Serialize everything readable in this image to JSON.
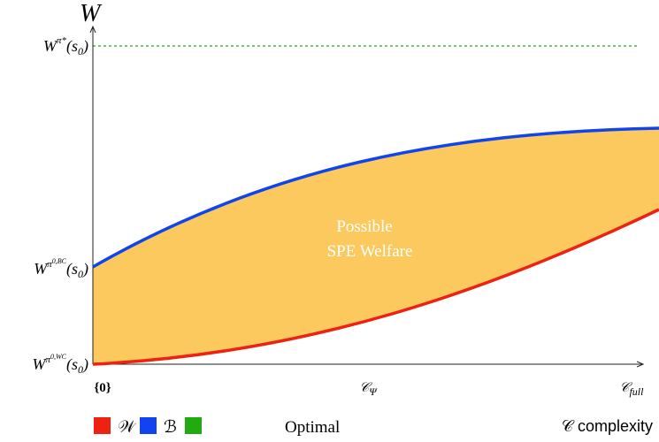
{
  "y_axis": {
    "label": "W",
    "ticks": [
      {
        "base": "W",
        "sup": "π*",
        "arg": "(s",
        "sub": "0",
        "close": ")"
      },
      {
        "base": "W",
        "sup": "π",
        "supsup": "0,BC",
        "arg": "(s",
        "sub": "0",
        "close": ")"
      },
      {
        "base": "W",
        "sup": "π",
        "supsup": "0,WC",
        "arg": "(s",
        "sub": "0",
        "close": ")"
      }
    ]
  },
  "x_axis": {
    "ticks": [
      {
        "base": "{0}"
      },
      {
        "base": "𝒞",
        "sub": "Ψ"
      },
      {
        "base": "𝒞",
        "sub": "full"
      }
    ],
    "label": "𝒞 complexity"
  },
  "region_label": [
    "Possible",
    "SPE Welfare"
  ],
  "legend": [
    {
      "name": "𝒲",
      "color": "#ee2211"
    },
    {
      "name": "ℬ",
      "color": "#1144ee"
    },
    {
      "name": "Optimal",
      "color": "#22aa11"
    }
  ]
}
